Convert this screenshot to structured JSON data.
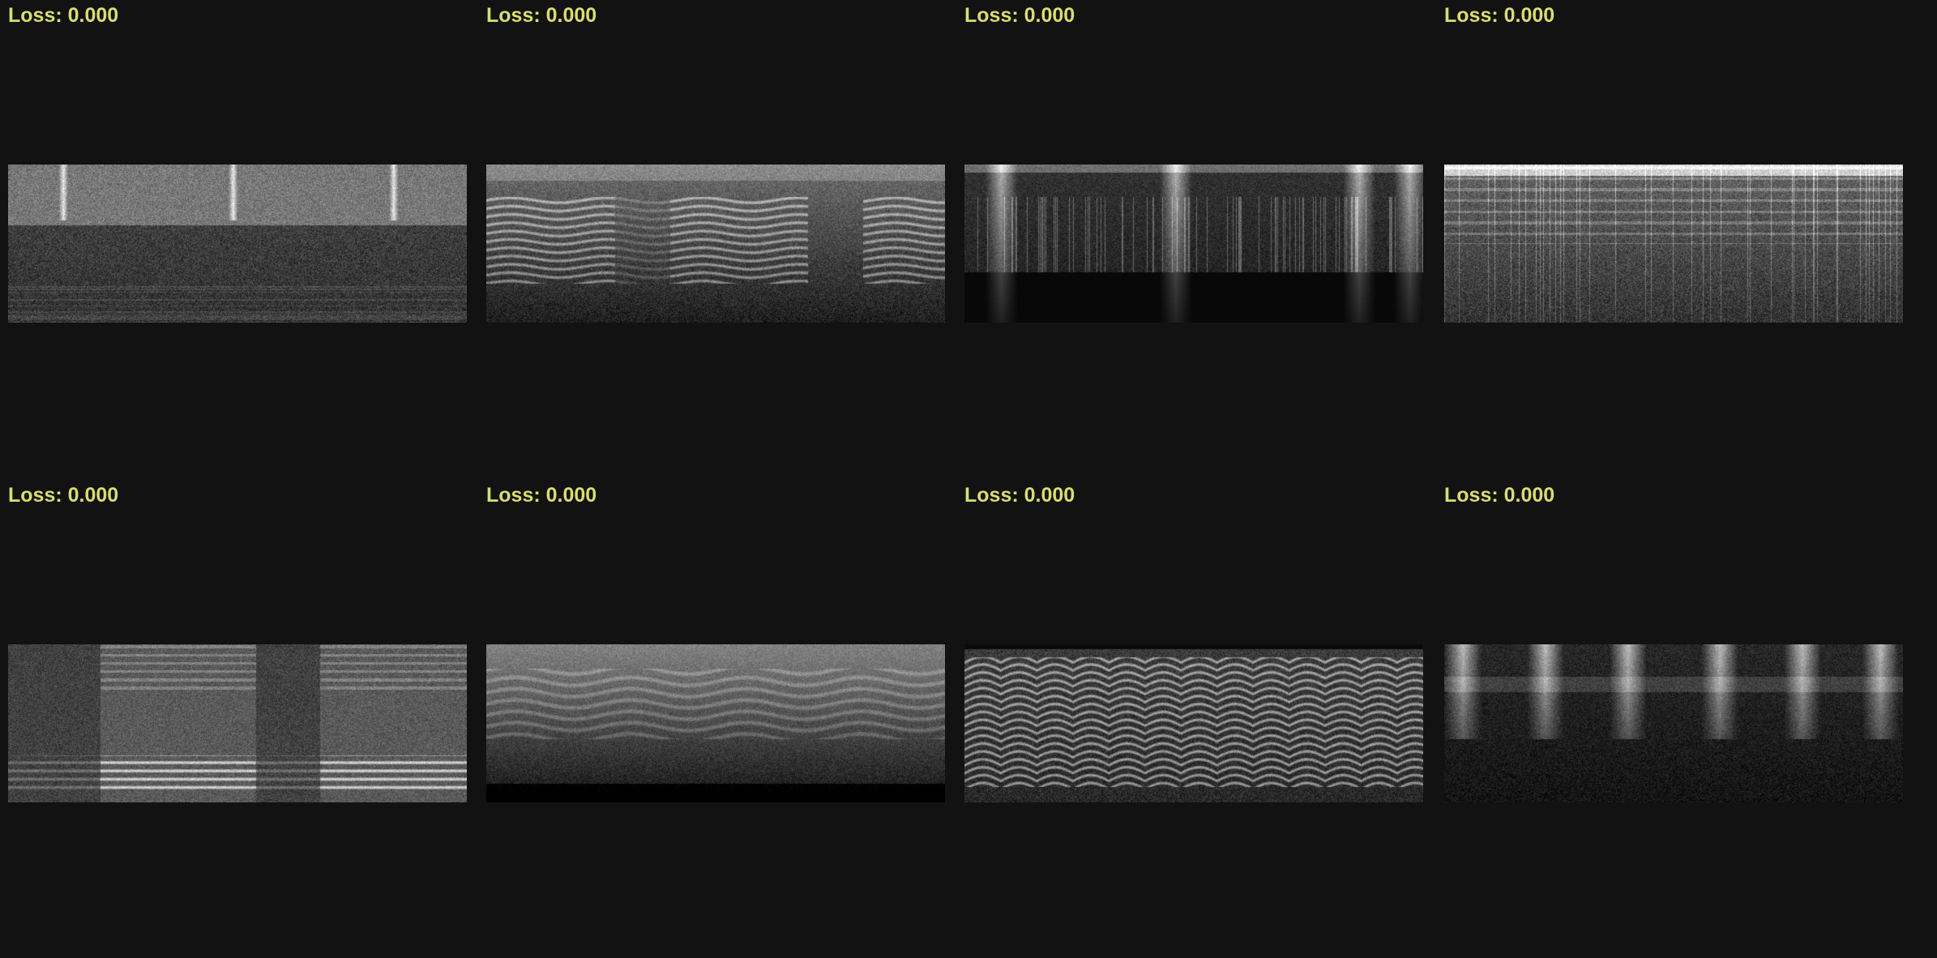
{
  "loss_label_color": "#d7df6e",
  "background_color": "#121212",
  "panels": [
    {
      "label": "Loss: 0.000",
      "style": "ambient-noise-with-bursts"
    },
    {
      "label": "Loss: 0.000",
      "style": "harmonic-speech"
    },
    {
      "label": "Loss: 0.000",
      "style": "sparse-bursts-dark"
    },
    {
      "label": "Loss: 0.000",
      "style": "dense-bright-columns"
    },
    {
      "label": "Loss: 0.000",
      "style": "broadband-blocks"
    },
    {
      "label": "Loss: 0.000",
      "style": "wavy-harmonics-soft"
    },
    {
      "label": "Loss: 0.000",
      "style": "chirping-harmonics"
    },
    {
      "label": "Loss: 0.000",
      "style": "periodic-bursts"
    }
  ]
}
